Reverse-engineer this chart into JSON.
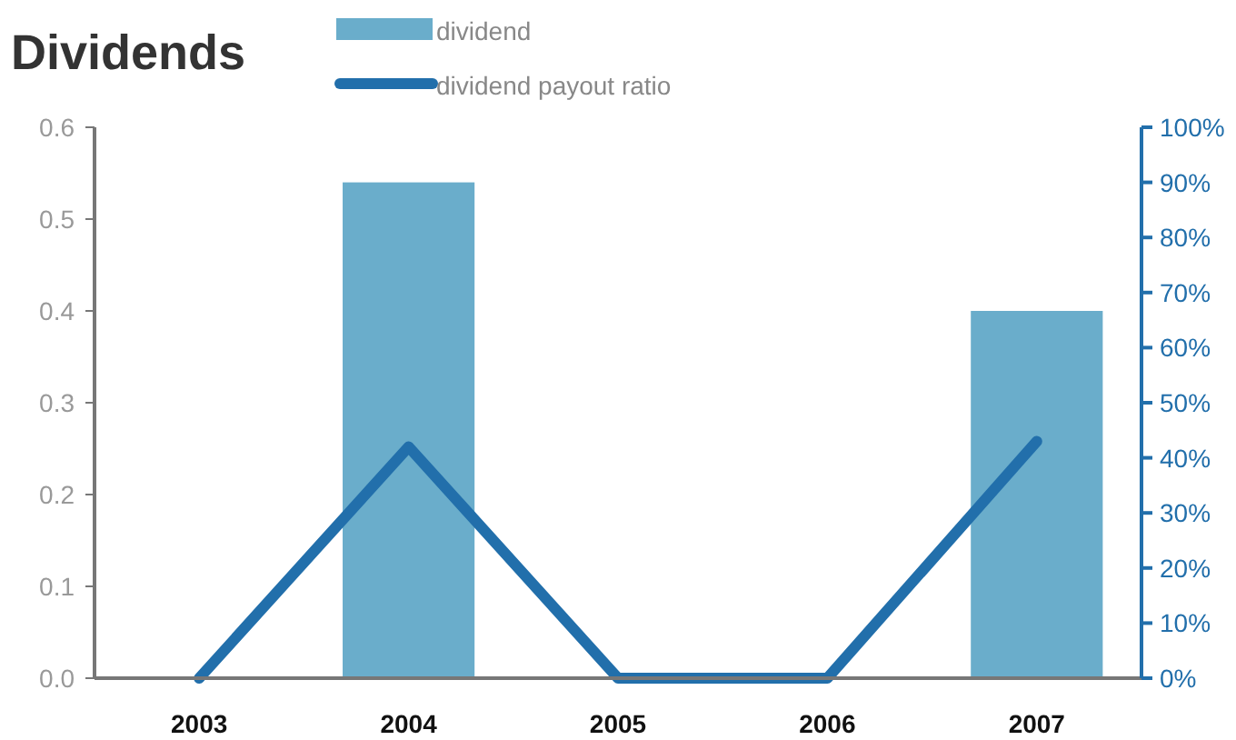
{
  "chart_data": {
    "type": "bar",
    "title": "Dividends",
    "categories": [
      "2003",
      "2004",
      "2005",
      "2006",
      "2007"
    ],
    "series": [
      {
        "name": "dividend",
        "color": "#6aadcb",
        "values": [
          0,
          0.54,
          0,
          0,
          0.4
        ]
      },
      {
        "name": "dividend payout ratio",
        "type": "line",
        "axis": "y2",
        "color": "#226fab",
        "values": [
          0,
          42,
          0,
          0,
          43
        ]
      }
    ],
    "ylim": [
      0,
      0.6
    ],
    "yticks": [
      {
        "value": 0,
        "label": "0.0"
      },
      0.1,
      0.2,
      0.3,
      0.4,
      0.5,
      0.6
    ],
    "y2lim": [
      0,
      100
    ],
    "y2ticks": [
      {
        "value": 0,
        "label": "0%"
      },
      {
        "value": 10,
        "label": "10%"
      },
      {
        "value": 20,
        "label": "20%"
      },
      {
        "value": 30,
        "label": "30%"
      },
      {
        "value": 40,
        "label": "40%"
      },
      {
        "value": 50,
        "label": "50%"
      },
      {
        "value": 60,
        "label": "60%"
      },
      {
        "value": 70,
        "label": "70%"
      },
      {
        "value": 80,
        "label": "80%"
      },
      {
        "value": 90,
        "label": "90%"
      },
      {
        "value": 100,
        "label": "100%"
      }
    ],
    "legend": "top",
    "grid": false
  }
}
